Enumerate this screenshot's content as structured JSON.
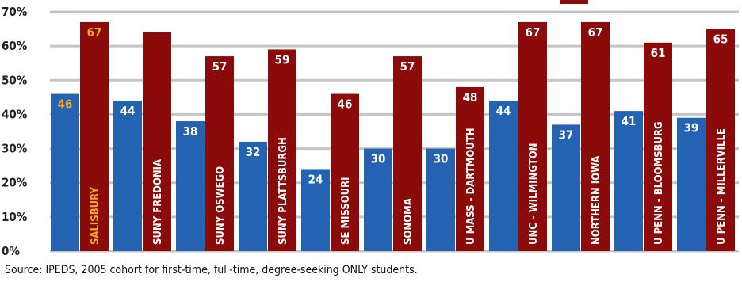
{
  "chart_data": {
    "type": "bar",
    "categories": [
      "SALISBURY",
      "SUNY FREDONIA",
      "SUNY OSWEGO",
      "SUNY PLATTSBURGH",
      "SE MISSOURI",
      "SONOMA",
      "U MASS - DARTMOUTH",
      "UNC - WILMINGTON",
      "NORTHERN IOWA",
      "U PENN - BLOOMSBURG",
      "U PENN - MILLERVILLE"
    ],
    "series": [
      {
        "values": [
          46,
          44,
          38,
          32,
          24,
          30,
          30,
          44,
          37,
          41,
          39
        ],
        "value_labels": [
          "46",
          "44",
          "38",
          "32",
          "24",
          "30",
          "30",
          "44",
          "37",
          "41",
          "39"
        ],
        "color": "#2463b1"
      },
      {
        "values": [
          67,
          64,
          57,
          59,
          46,
          57,
          48,
          67,
          67,
          61,
          65
        ],
        "value_labels": [
          "67",
          "",
          "57",
          "59",
          "46",
          "57",
          "48",
          "67",
          "67",
          "61",
          "65"
        ],
        "color": "#8b0a0a"
      }
    ],
    "highlight": {
      "category": "SALISBURY",
      "color": "#f5a623"
    },
    "yticks": [
      "0%",
      "10%",
      "20%",
      "30%",
      "40%",
      "50%",
      "60%",
      "70%"
    ],
    "ylim": [
      0,
      70
    ],
    "grid": true,
    "gridline_color": "#c4c4c4"
  },
  "footer": {
    "source": "Source: IPEDS, 2005 cohort for first-time, full-time, degree-seeking ONLY students."
  }
}
